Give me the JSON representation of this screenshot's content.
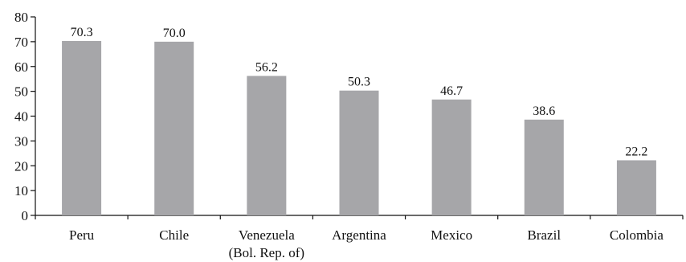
{
  "chart_data": {
    "type": "bar",
    "title": "",
    "xlabel": "",
    "ylabel": "",
    "ylim": [
      0,
      80
    ],
    "yticks": [
      0,
      10,
      20,
      30,
      40,
      50,
      60,
      70,
      80
    ],
    "grid": false,
    "categories": [
      [
        "Peru"
      ],
      [
        "Chile"
      ],
      [
        "Venezuela",
        "(Bol. Rep. of)"
      ],
      [
        "Argentina"
      ],
      [
        "Mexico"
      ],
      [
        "Brazil"
      ],
      [
        "Colombia"
      ]
    ],
    "values": [
      70.3,
      70.0,
      56.2,
      50.3,
      46.7,
      38.6,
      22.2
    ],
    "value_labels": [
      "70.3",
      "70.0",
      "56.2",
      "50.3",
      "46.7",
      "38.6",
      "22.2"
    ],
    "bar_color": "#a6a6a9"
  }
}
